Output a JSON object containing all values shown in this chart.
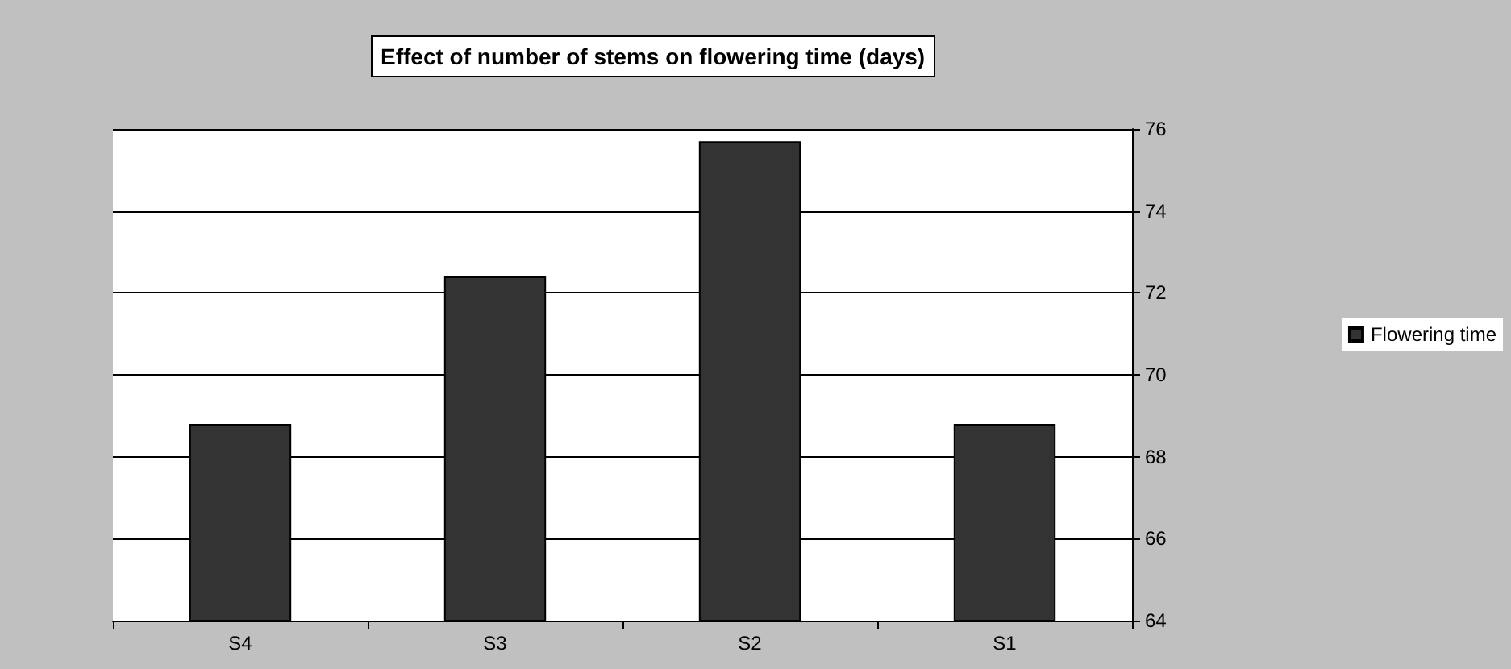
{
  "chart_data": {
    "type": "bar",
    "title": "Effect of number of stems on flowering time (days)",
    "categories": [
      "S4",
      "S3",
      "S2",
      "S1"
    ],
    "series": [
      {
        "name": "Flowering time",
        "color": "#333333",
        "values": [
          68.8,
          72.4,
          75.7,
          68.8
        ]
      }
    ],
    "ylim": [
      64,
      76
    ],
    "yticks": [
      64,
      66,
      68,
      70,
      72,
      74,
      76
    ],
    "grid": "y",
    "legend": "right"
  }
}
